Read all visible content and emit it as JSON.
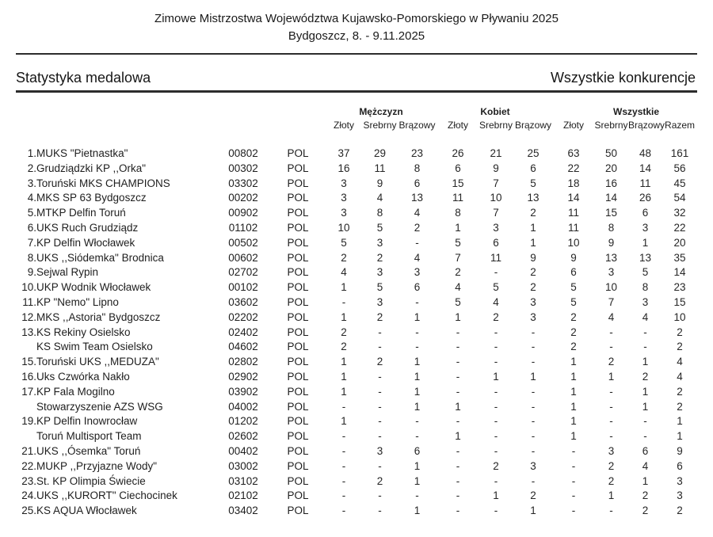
{
  "header": {
    "title": "Zimowe Mistrzostwa Województwa Kujawsko-Pomorskiego w Pływaniu 2025",
    "subtitle": "Bydgoszcz, 8. - 9.11.2025"
  },
  "section": {
    "left_title": "Statystyka medalowa",
    "right_title": "Wszystkie konkurencje"
  },
  "table": {
    "group_headers": {
      "men": "Mężczyzn",
      "women": "Kobiet",
      "all": "Wszystkie"
    },
    "sub_headers": {
      "gold": "Złoty",
      "silver": "Srebrny",
      "bronze": "Brązowy",
      "total": "Razem"
    },
    "rows": [
      {
        "rank": "1.",
        "club": "MUKS \"Pietnastka\"",
        "code": "00802",
        "country": "POL",
        "cells": [
          "37",
          "29",
          "23",
          "26",
          "21",
          "25",
          "63",
          "50",
          "48",
          "161"
        ]
      },
      {
        "rank": "2.",
        "club": "Grudziądzki KP ,,Orka\"",
        "code": "00302",
        "country": "POL",
        "cells": [
          "16",
          "11",
          "8",
          "6",
          "9",
          "6",
          "22",
          "20",
          "14",
          "56"
        ]
      },
      {
        "rank": "3.",
        "club": "Toruński MKS CHAMPIONS",
        "code": "03302",
        "country": "POL",
        "cells": [
          "3",
          "9",
          "6",
          "15",
          "7",
          "5",
          "18",
          "16",
          "11",
          "45"
        ]
      },
      {
        "rank": "4.",
        "club": "MKS SP 63 Bydgoszcz",
        "code": "00202",
        "country": "POL",
        "cells": [
          "3",
          "4",
          "13",
          "11",
          "10",
          "13",
          "14",
          "14",
          "26",
          "54"
        ]
      },
      {
        "rank": "5.",
        "club": "MTKP Delfin Toruń",
        "code": "00902",
        "country": "POL",
        "cells": [
          "3",
          "8",
          "4",
          "8",
          "7",
          "2",
          "11",
          "15",
          "6",
          "32"
        ]
      },
      {
        "rank": "6.",
        "club": "UKS Ruch Grudziądz",
        "code": "01102",
        "country": "POL",
        "cells": [
          "10",
          "5",
          "2",
          "1",
          "3",
          "1",
          "11",
          "8",
          "3",
          "22"
        ]
      },
      {
        "rank": "7.",
        "club": "KP Delfin Włocławek",
        "code": "00502",
        "country": "POL",
        "cells": [
          "5",
          "3",
          "-",
          "5",
          "6",
          "1",
          "10",
          "9",
          "1",
          "20"
        ]
      },
      {
        "rank": "8.",
        "club": "UKS ,,Siódemka\" Brodnica",
        "code": "00602",
        "country": "POL",
        "cells": [
          "2",
          "2",
          "4",
          "7",
          "11",
          "9",
          "9",
          "13",
          "13",
          "35"
        ]
      },
      {
        "rank": "9.",
        "club": "Sejwal Rypin",
        "code": "02702",
        "country": "POL",
        "cells": [
          "4",
          "3",
          "3",
          "2",
          "-",
          "2",
          "6",
          "3",
          "5",
          "14"
        ]
      },
      {
        "rank": "10.",
        "club": "UKP Wodnik Włocławek",
        "code": "00102",
        "country": "POL",
        "cells": [
          "1",
          "5",
          "6",
          "4",
          "5",
          "2",
          "5",
          "10",
          "8",
          "23"
        ]
      },
      {
        "rank": "11.",
        "club": "KP \"Nemo\" Lipno",
        "code": "03602",
        "country": "POL",
        "cells": [
          "-",
          "3",
          "-",
          "5",
          "4",
          "3",
          "5",
          "7",
          "3",
          "15"
        ]
      },
      {
        "rank": "12.",
        "club": "MKS ,,Astoria\" Bydgoszcz",
        "code": "02202",
        "country": "POL",
        "cells": [
          "1",
          "2",
          "1",
          "1",
          "2",
          "3",
          "2",
          "4",
          "4",
          "10"
        ]
      },
      {
        "rank": "13.",
        "club": "KS Rekiny Osielsko",
        "code": "02402",
        "country": "POL",
        "cells": [
          "2",
          "-",
          "-",
          "-",
          "-",
          "-",
          "2",
          "-",
          "-",
          "2"
        ]
      },
      {
        "rank": "",
        "club": "KS Swim Team Osielsko",
        "code": "04602",
        "country": "POL",
        "cells": [
          "2",
          "-",
          "-",
          "-",
          "-",
          "-",
          "2",
          "-",
          "-",
          "2"
        ]
      },
      {
        "rank": "15.",
        "club": "Toruński UKS ,,MEDUZA\"",
        "code": "02802",
        "country": "POL",
        "cells": [
          "1",
          "2",
          "1",
          "-",
          "-",
          "-",
          "1",
          "2",
          "1",
          "4"
        ]
      },
      {
        "rank": "16.",
        "club": "Uks Czwórka Nakło",
        "code": "02902",
        "country": "POL",
        "cells": [
          "1",
          "-",
          "1",
          "-",
          "1",
          "1",
          "1",
          "1",
          "2",
          "4"
        ]
      },
      {
        "rank": "17.",
        "club": "KP Fala Mogilno",
        "code": "03902",
        "country": "POL",
        "cells": [
          "1",
          "-",
          "1",
          "-",
          "-",
          "-",
          "1",
          "-",
          "1",
          "2"
        ]
      },
      {
        "rank": "",
        "club": "Stowarzyszenie AZS WSG",
        "code": "04002",
        "country": "POL",
        "cells": [
          "-",
          "-",
          "1",
          "1",
          "-",
          "-",
          "1",
          "-",
          "1",
          "2"
        ]
      },
      {
        "rank": "19.",
        "club": "KP Delfin Inowrocław",
        "code": "01202",
        "country": "POL",
        "cells": [
          "1",
          "-",
          "-",
          "-",
          "-",
          "-",
          "1",
          "-",
          "-",
          "1"
        ]
      },
      {
        "rank": "",
        "club": "Toruń Multisport Team",
        "code": "02602",
        "country": "POL",
        "cells": [
          "-",
          "-",
          "-",
          "1",
          "-",
          "-",
          "1",
          "-",
          "-",
          "1"
        ]
      },
      {
        "rank": "21.",
        "club": "UKS ,,Ósemka\" Toruń",
        "code": "00402",
        "country": "POL",
        "cells": [
          "-",
          "3",
          "6",
          "-",
          "-",
          "-",
          "-",
          "3",
          "6",
          "9"
        ]
      },
      {
        "rank": "22.",
        "club": "MUKP ,,Przyjazne Wody\"",
        "code": "03002",
        "country": "POL",
        "cells": [
          "-",
          "-",
          "1",
          "-",
          "2",
          "3",
          "-",
          "2",
          "4",
          "6"
        ]
      },
      {
        "rank": "23.",
        "club": "St. KP Olimpia Świecie",
        "code": "03102",
        "country": "POL",
        "cells": [
          "-",
          "2",
          "1",
          "-",
          "-",
          "-",
          "-",
          "2",
          "1",
          "3"
        ]
      },
      {
        "rank": "24.",
        "club": "UKS ,,KURORT\" Ciechocinek",
        "code": "02102",
        "country": "POL",
        "cells": [
          "-",
          "-",
          "-",
          "-",
          "1",
          "2",
          "-",
          "1",
          "2",
          "3"
        ]
      },
      {
        "rank": "25.",
        "club": "KS AQUA Włocławek",
        "code": "03402",
        "country": "POL",
        "cells": [
          "-",
          "-",
          "1",
          "-",
          "-",
          "1",
          "-",
          "-",
          "2",
          "2"
        ]
      }
    ]
  }
}
